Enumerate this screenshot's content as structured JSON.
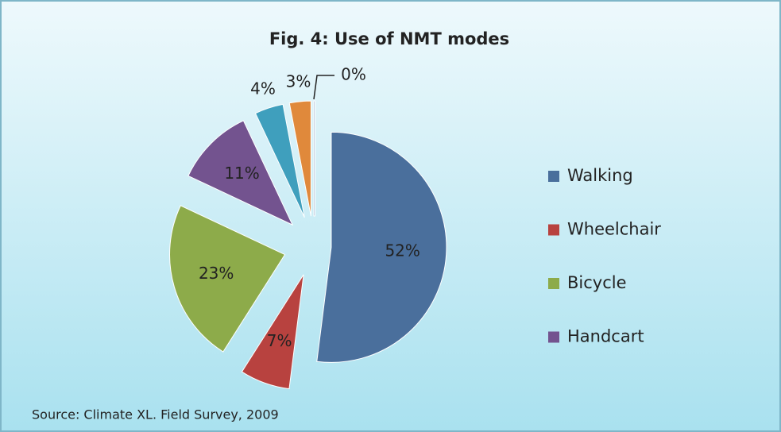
{
  "chart_data": {
    "type": "pie",
    "title": "Fig. 4: Use of NMT modes",
    "categories": [
      "Walking",
      "Wheelchair",
      "Bicycle",
      "Handcart",
      null,
      null,
      null
    ],
    "values": [
      52,
      7,
      23,
      11,
      4,
      3,
      0
    ],
    "value_labels": [
      "52%",
      "7%",
      "23%",
      "11%",
      "4%",
      "3%",
      "0%"
    ],
    "colors": [
      "#4a6f9c",
      "#b8423f",
      "#8dab4a",
      "#73538f",
      "#3f9fbd",
      "#e0893b",
      "#8fa3c3"
    ],
    "legend": "right",
    "source": "Source: Climate XL. Field Survey, 2009"
  }
}
